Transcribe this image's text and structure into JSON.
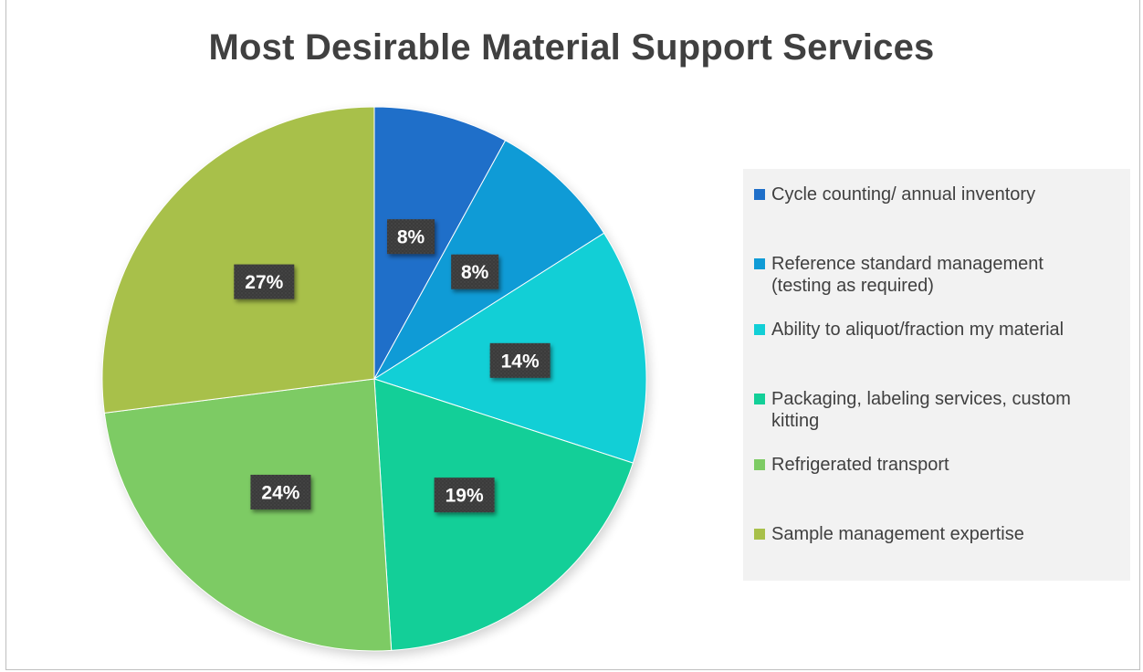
{
  "chart_data": {
    "type": "pie",
    "title": "Most Desirable Material Support Services",
    "categories": [
      "Cycle counting/ annual inventory",
      "Reference standard management (testing as required)",
      "Ability to aliquot/fraction my material",
      "Packaging, labeling services, custom kitting",
      "Refrigerated transport",
      "Sample management expertise"
    ],
    "values": [
      8,
      8,
      14,
      19,
      24,
      27
    ],
    "data_labels": [
      "8%",
      "8%",
      "14%",
      "19%",
      "24%",
      "27%"
    ],
    "colors": [
      "#1f6fc9",
      "#0f9bd6",
      "#12cfd6",
      "#13cf98",
      "#7dcb64",
      "#a8c04a"
    ],
    "legend_position": "right"
  },
  "legend": {
    "items": [
      {
        "lines": [
          "Cycle counting/ annual inventory"
        ]
      },
      {
        "lines": [
          "Reference standard management",
          "(testing as required)"
        ]
      },
      {
        "lines": [
          "Ability to aliquot/fraction my material"
        ]
      },
      {
        "lines": [
          "Packaging, labeling services, custom",
          "kitting"
        ]
      },
      {
        "lines": [
          "Refrigerated transport"
        ]
      },
      {
        "lines": [
          "Sample management expertise"
        ]
      }
    ]
  }
}
